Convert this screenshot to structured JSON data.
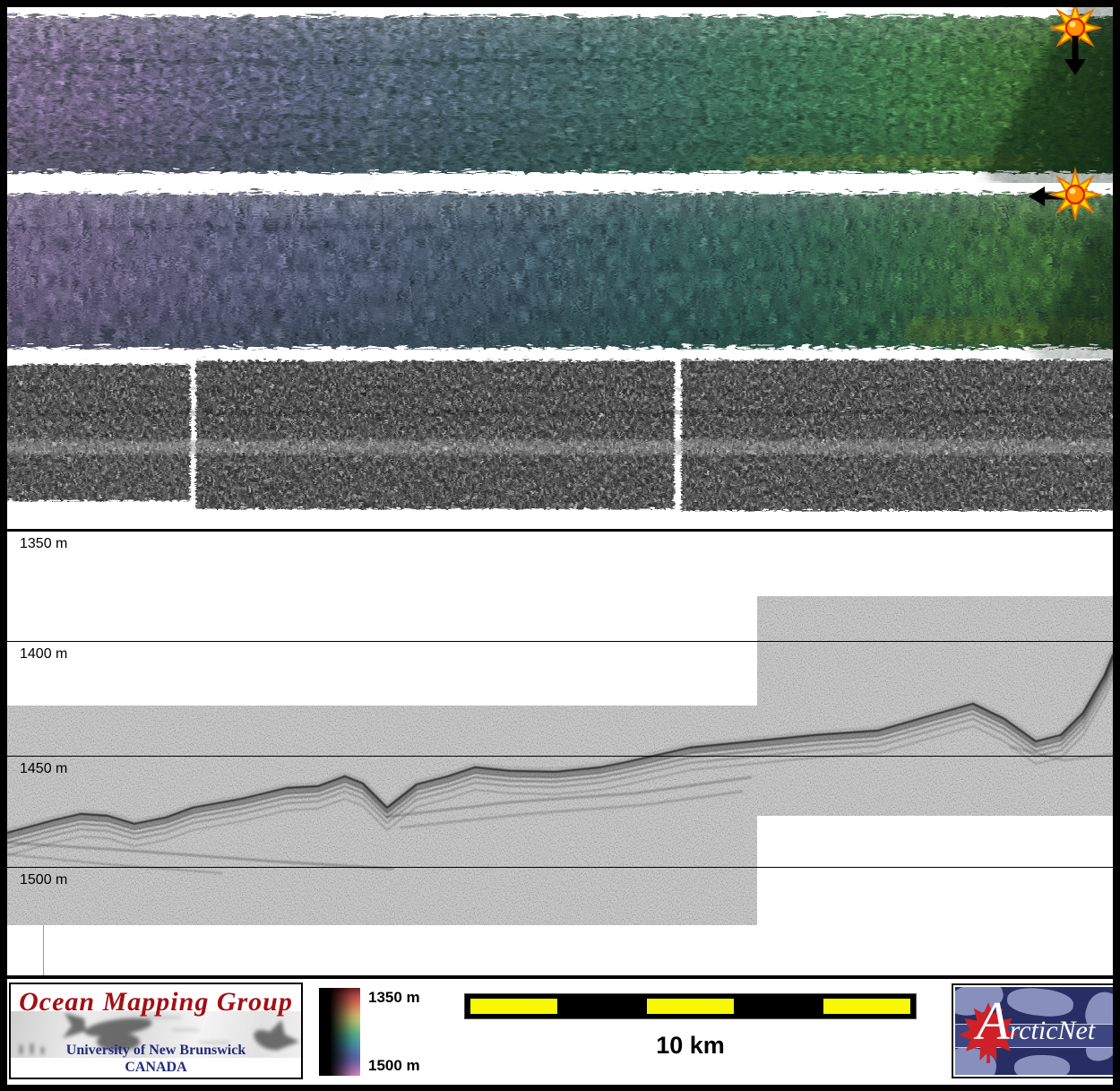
{
  "figure": {
    "description": "Seafloor survey figure: two sun-illuminated multibeam bathymetry swaths, a sidescan backscatter strip, and a sub-bottom acoustic profile with depth grid",
    "background": "#ffffff",
    "border_color": "#000000"
  },
  "swaths": {
    "swath1": {
      "name": "multibeam bathymetry swath (upper)",
      "gradient": [
        [
          "0%",
          "#ab90c2"
        ],
        [
          "8%",
          "#a189bb"
        ],
        [
          "18%",
          "#8d85b0"
        ],
        [
          "30%",
          "#7884a5"
        ],
        [
          "42%",
          "#6a8699"
        ],
        [
          "54%",
          "#5e8c8a"
        ],
        [
          "64%",
          "#57937b"
        ],
        [
          "74%",
          "#54996b"
        ],
        [
          "82%",
          "#599f5d"
        ],
        [
          "90%",
          "#559346"
        ],
        [
          "96%",
          "#41762f"
        ],
        [
          "100%",
          "#2b5120"
        ]
      ],
      "sun_marker": {
        "icon": "sun-burst",
        "arrow_direction": "down"
      }
    },
    "swath2": {
      "name": "multibeam bathymetry swath (lower, vertical striation)",
      "gradient": [
        [
          "0%",
          "#a28bb9"
        ],
        [
          "10%",
          "#9486b1"
        ],
        [
          "22%",
          "#8082a6"
        ],
        [
          "34%",
          "#6f7e9a"
        ],
        [
          "46%",
          "#5f7d8d"
        ],
        [
          "58%",
          "#4f7f7d"
        ],
        [
          "70%",
          "#48846c"
        ],
        [
          "80%",
          "#4c8c5b"
        ],
        [
          "90%",
          "#579549"
        ],
        [
          "100%",
          "#3f7231"
        ]
      ],
      "sun_marker": {
        "icon": "sun-burst",
        "arrow_direction": "left"
      }
    },
    "backscatter": {
      "name": "sidescan backscatter strip",
      "segments": 3,
      "base_color": "#414141"
    }
  },
  "profile": {
    "name": "sub-bottom profiler section",
    "units": "m",
    "depth_labels": [
      "1350 m",
      "1400 m",
      "1450 m",
      "1500 m"
    ],
    "depth_values": [
      1350,
      1400,
      1450,
      1500
    ],
    "seafloor_points": [
      [
        0,
        336
      ],
      [
        52,
        322
      ],
      [
        82,
        315
      ],
      [
        112,
        317
      ],
      [
        142,
        326
      ],
      [
        177,
        319
      ],
      [
        207,
        308
      ],
      [
        262,
        298
      ],
      [
        312,
        286
      ],
      [
        347,
        284
      ],
      [
        377,
        273
      ],
      [
        397,
        281
      ],
      [
        424,
        308
      ],
      [
        457,
        282
      ],
      [
        492,
        273
      ],
      [
        522,
        263
      ],
      [
        562,
        267
      ],
      [
        612,
        268
      ],
      [
        662,
        263
      ],
      [
        692,
        257
      ],
      [
        762,
        241
      ],
      [
        832,
        234
      ],
      [
        902,
        227
      ],
      [
        972,
        222
      ],
      [
        1042,
        202
      ],
      [
        1078,
        192
      ],
      [
        1113,
        209
      ],
      [
        1148,
        234
      ],
      [
        1176,
        227
      ],
      [
        1201,
        202
      ],
      [
        1225,
        160
      ],
      [
        1234,
        138
      ]
    ]
  },
  "legend": {
    "colorbar": {
      "top_label": "1350 m",
      "bottom_label": "1500 m",
      "depth_range_m": [
        1350,
        1500
      ],
      "stops": [
        "#6e2424",
        "#b84848",
        "#d86850",
        "#e09060",
        "#d8b870",
        "#b8c878",
        "#88c080",
        "#58b494",
        "#48a4a4",
        "#5488b0",
        "#5870ac",
        "#7868b0",
        "#a878b8",
        "#d890c8"
      ]
    },
    "scalebar": {
      "label": "10 km",
      "segment_pattern": [
        "yellow",
        "black",
        "yellow",
        "black",
        "yellow"
      ],
      "yellow_color": "#f8f800"
    }
  },
  "logos": {
    "omg": {
      "title": "Ocean Mapping Group",
      "subtitle1": "University of New Brunswick",
      "subtitle2": "CANADA",
      "title_color": "#a40f14",
      "subtitle_color": "#232a7e"
    },
    "arcticnet": {
      "text_a": "A",
      "text_rest": "rcticNet",
      "bg_color": "#272e63",
      "land_color": "#8f99c4",
      "leaf_color": "#d02028"
    }
  }
}
